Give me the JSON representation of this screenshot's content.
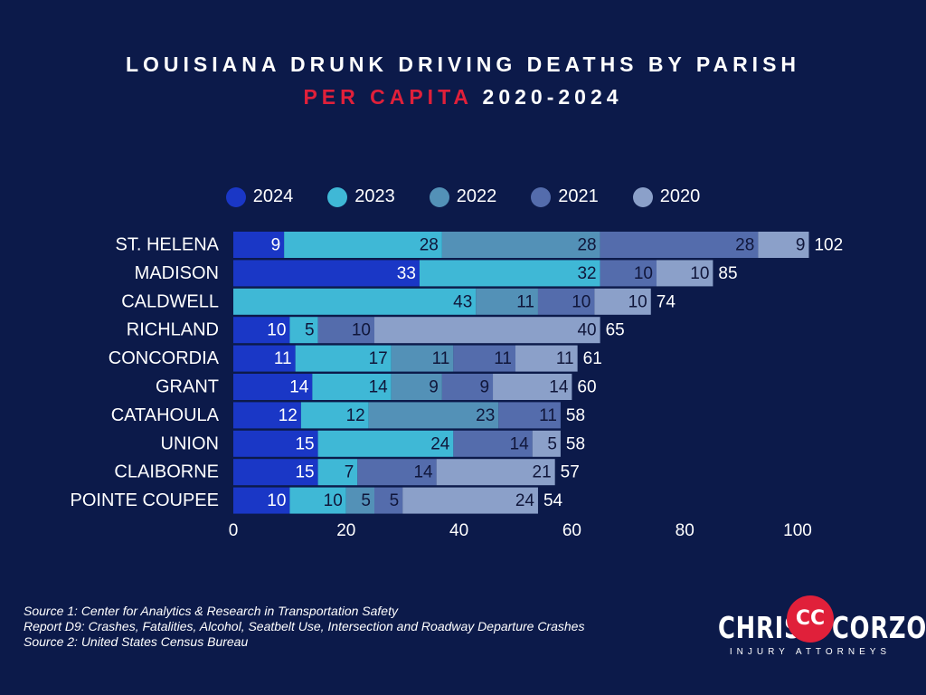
{
  "title": {
    "line1": "LOUISIANA DRUNK DRIVING DEATHS BY PARISH",
    "line2_accent": "PER CAPITA",
    "line2_rest": " 2020-2024"
  },
  "colors": {
    "background": "#0c1a4a",
    "accent": "#e0203a",
    "2024": "#1a37c6",
    "2023": "#3fb8d6",
    "2022": "#5391b7",
    "2021": "#546cac",
    "2020": "#8ba0c9"
  },
  "chart_data": {
    "type": "bar",
    "orientation": "horizontal",
    "stacked": true,
    "categories": [
      "ST. HELENA",
      "MADISON",
      "CALDWELL",
      "RICHLAND",
      "CONCORDIA",
      "GRANT",
      "CATAHOULA",
      "UNION",
      "CLAIBORNE",
      "POINTE COUPEE"
    ],
    "series": [
      {
        "name": "2024",
        "values": [
          9,
          33,
          0,
          10,
          11,
          14,
          12,
          15,
          15,
          10
        ]
      },
      {
        "name": "2023",
        "values": [
          28,
          32,
          43,
          5,
          17,
          14,
          12,
          24,
          7,
          10
        ]
      },
      {
        "name": "2022",
        "values": [
          28,
          0,
          11,
          0,
          11,
          9,
          23,
          0,
          0,
          5
        ]
      },
      {
        "name": "2021",
        "values": [
          28,
          10,
          10,
          10,
          11,
          9,
          11,
          14,
          14,
          5
        ]
      },
      {
        "name": "2020",
        "values": [
          9,
          10,
          10,
          40,
          11,
          14,
          0,
          5,
          21,
          24
        ]
      }
    ],
    "totals": [
      102,
      85,
      74,
      65,
      61,
      60,
      58,
      58,
      57,
      54
    ],
    "xlim": [
      0,
      100
    ],
    "xticks": [
      0,
      20,
      40,
      60,
      80,
      100
    ],
    "legend_position": "top",
    "grid": false
  },
  "sources": {
    "line1": "Source 1: Center for Analytics & Research in Transportation Safety",
    "line2": "Report D9: Crashes, Fatalities, Alcohol, Seatbelt Use, Intersection and Roadway Departure Crashes",
    "line3": "Source 2: United States Census Bureau"
  },
  "logo": {
    "left": "CHRIS",
    "right": "CORZO",
    "tagline": "INJURY ATTORNEYS"
  }
}
